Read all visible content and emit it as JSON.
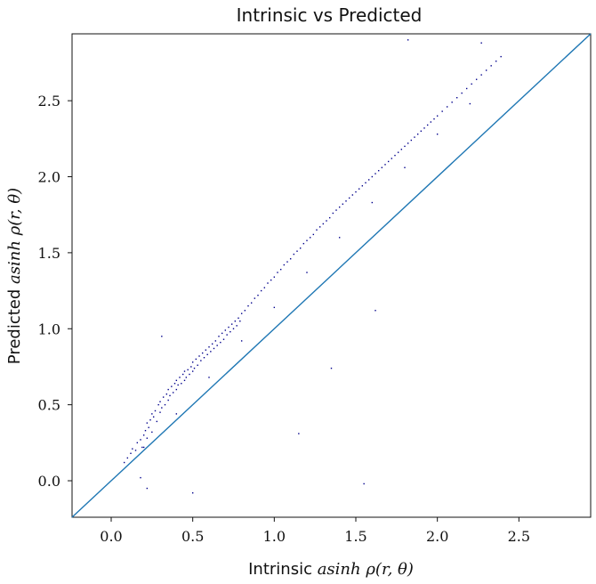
{
  "chart_data": {
    "type": "scatter",
    "title": "Intrinsic vs Predicted",
    "xlabel_prefix": "Intrinsic ",
    "xlabel_math": "asinh ρ(r, θ)",
    "ylabel_prefix": "Predicted ",
    "ylabel_math": "asinh ρ(r, θ)",
    "xlim": [
      -0.24,
      2.94
    ],
    "ylim": [
      -0.24,
      2.94
    ],
    "xticks": [
      0.0,
      0.5,
      1.0,
      1.5,
      2.0,
      2.5
    ],
    "xtick_labels": [
      "0.0",
      "0.5",
      "1.0",
      "1.5",
      "2.0",
      "2.5"
    ],
    "yticks": [
      0.0,
      0.5,
      1.0,
      1.5,
      2.0,
      2.5
    ],
    "ytick_labels": [
      "0.0",
      "0.5",
      "1.0",
      "1.5",
      "2.0",
      "2.5"
    ],
    "grid": false,
    "legend": "none",
    "point_color": "#00008b",
    "line_color": "#1f77b4",
    "identity_line": true,
    "x": [
      0.08,
      0.1,
      0.12,
      0.13,
      0.15,
      0.16,
      0.18,
      0.19,
      0.2,
      0.21,
      0.22,
      0.22,
      0.23,
      0.24,
      0.25,
      0.25,
      0.26,
      0.27,
      0.28,
      0.29,
      0.3,
      0.3,
      0.31,
      0.32,
      0.33,
      0.34,
      0.35,
      0.35,
      0.36,
      0.37,
      0.38,
      0.39,
      0.4,
      0.4,
      0.41,
      0.42,
      0.43,
      0.44,
      0.45,
      0.45,
      0.46,
      0.47,
      0.48,
      0.49,
      0.5,
      0.5,
      0.51,
      0.52,
      0.53,
      0.54,
      0.55,
      0.56,
      0.57,
      0.58,
      0.59,
      0.6,
      0.61,
      0.62,
      0.63,
      0.64,
      0.65,
      0.66,
      0.67,
      0.68,
      0.69,
      0.7,
      0.71,
      0.72,
      0.73,
      0.74,
      0.75,
      0.76,
      0.77,
      0.78,
      0.79,
      0.8,
      0.82,
      0.84,
      0.86,
      0.88,
      0.9,
      0.92,
      0.94,
      0.96,
      0.98,
      1.0,
      1.02,
      1.04,
      1.06,
      1.08,
      1.1,
      1.12,
      1.14,
      1.16,
      1.18,
      1.2,
      1.22,
      1.24,
      1.26,
      1.28,
      1.3,
      1.32,
      1.34,
      1.36,
      1.38,
      1.4,
      1.42,
      1.44,
      1.46,
      1.48,
      1.5,
      1.52,
      1.54,
      1.56,
      1.58,
      1.6,
      1.62,
      1.64,
      1.66,
      1.68,
      1.7,
      1.72,
      1.74,
      1.76,
      1.78,
      1.8,
      1.82,
      1.84,
      1.86,
      1.88,
      1.9,
      1.92,
      1.94,
      1.96,
      1.98,
      2.0,
      2.03,
      2.06,
      2.09,
      2.12,
      2.15,
      2.18,
      2.21,
      2.24,
      2.27,
      2.3,
      2.33,
      2.36,
      2.39,
      2.2,
      2.0,
      1.8,
      1.6,
      1.4,
      1.2,
      1.0,
      0.8,
      0.6,
      0.4,
      0.2,
      1.55,
      1.62,
      1.35,
      1.15,
      1.82,
      2.27,
      0.5,
      0.31,
      0.22,
      0.18
    ],
    "y": [
      0.12,
      0.15,
      0.18,
      0.21,
      0.2,
      0.25,
      0.27,
      0.22,
      0.3,
      0.33,
      0.28,
      0.38,
      0.35,
      0.4,
      0.32,
      0.44,
      0.42,
      0.46,
      0.39,
      0.5,
      0.45,
      0.52,
      0.48,
      0.55,
      0.5,
      0.57,
      0.53,
      0.6,
      0.56,
      0.62,
      0.58,
      0.64,
      0.6,
      0.66,
      0.63,
      0.68,
      0.64,
      0.7,
      0.66,
      0.72,
      0.68,
      0.73,
      0.7,
      0.75,
      0.72,
      0.78,
      0.74,
      0.8,
      0.76,
      0.82,
      0.79,
      0.84,
      0.81,
      0.86,
      0.83,
      0.88,
      0.85,
      0.9,
      0.87,
      0.92,
      0.89,
      0.95,
      0.91,
      0.97,
      0.93,
      0.99,
      0.96,
      1.01,
      0.98,
      1.03,
      1.0,
      1.05,
      1.02,
      1.07,
      1.05,
      1.1,
      1.12,
      1.15,
      1.17,
      1.2,
      1.22,
      1.25,
      1.27,
      1.3,
      1.32,
      1.34,
      1.37,
      1.39,
      1.42,
      1.44,
      1.46,
      1.49,
      1.51,
      1.53,
      1.56,
      1.58,
      1.6,
      1.62,
      1.65,
      1.67,
      1.69,
      1.71,
      1.73,
      1.76,
      1.78,
      1.8,
      1.82,
      1.84,
      1.86,
      1.88,
      1.9,
      1.92,
      1.94,
      1.96,
      1.98,
      2.0,
      2.02,
      2.04,
      2.06,
      2.08,
      2.1,
      2.12,
      2.14,
      2.16,
      2.18,
      2.2,
      2.22,
      2.24,
      2.26,
      2.28,
      2.3,
      2.32,
      2.34,
      2.36,
      2.38,
      2.4,
      2.43,
      2.46,
      2.49,
      2.52,
      2.55,
      2.58,
      2.61,
      2.64,
      2.67,
      2.7,
      2.73,
      2.76,
      2.79,
      2.48,
      2.28,
      2.06,
      1.83,
      1.6,
      1.37,
      1.14,
      0.92,
      0.68,
      0.44,
      0.22,
      -0.02,
      1.12,
      0.74,
      0.31,
      2.9,
      2.88,
      -0.08,
      0.95,
      -0.05,
      0.02
    ]
  }
}
